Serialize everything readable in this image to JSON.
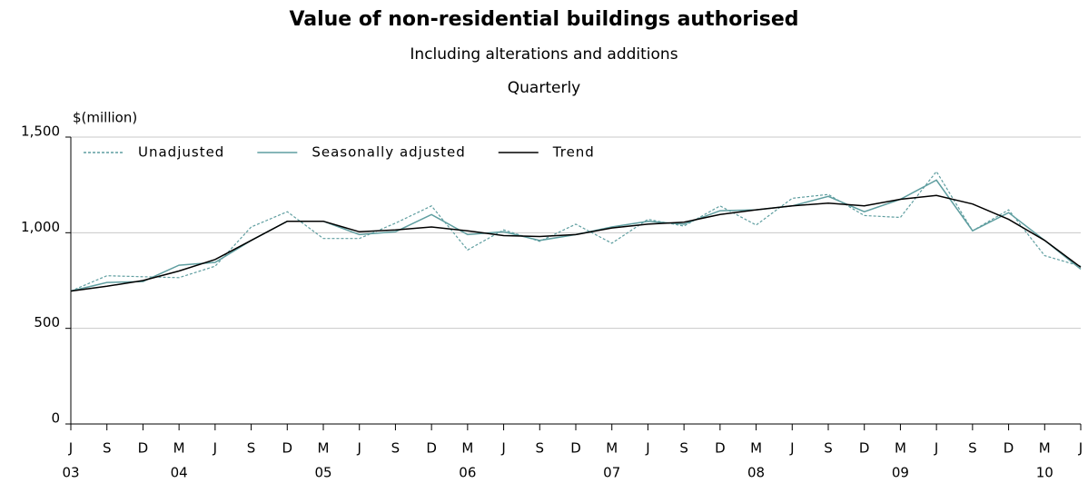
{
  "chart_data": {
    "type": "line",
    "title": "Value of non-residential buildings authorised",
    "subtitle": "Including alterations and additions",
    "subtitle2": "Quarterly",
    "y_label": "$(million)",
    "categories": [
      "J",
      "S",
      "D",
      "M",
      "J",
      "S",
      "D",
      "M",
      "J",
      "S",
      "D",
      "M",
      "J",
      "S",
      "D",
      "M",
      "J",
      "S",
      "D",
      "M",
      "J",
      "S",
      "D",
      "M",
      "J",
      "S",
      "D",
      "M",
      "J"
    ],
    "year_labels": [
      "03",
      null,
      null,
      "04",
      null,
      null,
      null,
      "05",
      null,
      null,
      null,
      "06",
      null,
      null,
      null,
      "07",
      null,
      null,
      null,
      "08",
      null,
      null,
      null,
      "09",
      null,
      null,
      null,
      "10",
      null
    ],
    "series": [
      {
        "name": "Unadjusted",
        "color": "#5f9ea0",
        "line_style": "dotted",
        "values": [
          695,
          775,
          770,
          765,
          825,
          1030,
          1110,
          970,
          970,
          1050,
          1140,
          910,
          1015,
          955,
          1045,
          945,
          1070,
          1035,
          1140,
          1040,
          1180,
          1200,
          1090,
          1080,
          1320,
          1010,
          1120,
          880,
          825
        ]
      },
      {
        "name": "Seasonally adjusted",
        "color": "#5f9ea0",
        "line_style": "solid",
        "values": [
          695,
          740,
          745,
          830,
          845,
          960,
          1060,
          1060,
          990,
          1005,
          1095,
          990,
          1005,
          960,
          990,
          1030,
          1060,
          1045,
          1115,
          1120,
          1140,
          1190,
          1110,
          1175,
          1275,
          1010,
          1105,
          960,
          810
        ]
      },
      {
        "name": "Trend",
        "color": "#000000",
        "line_style": "solid",
        "values": [
          695,
          720,
          750,
          800,
          860,
          960,
          1060,
          1060,
          1005,
          1015,
          1030,
          1010,
          985,
          980,
          990,
          1025,
          1045,
          1055,
          1095,
          1120,
          1140,
          1155,
          1140,
          1175,
          1195,
          1150,
          1070,
          960,
          820
        ]
      }
    ],
    "ylim": [
      0,
      1500
    ],
    "yticks": [
      0,
      500,
      {
        "value": 1000,
        "label": "1,000"
      },
      {
        "value": 1500,
        "label": "1,500"
      }
    ],
    "grid": true,
    "legend": "top-left"
  }
}
